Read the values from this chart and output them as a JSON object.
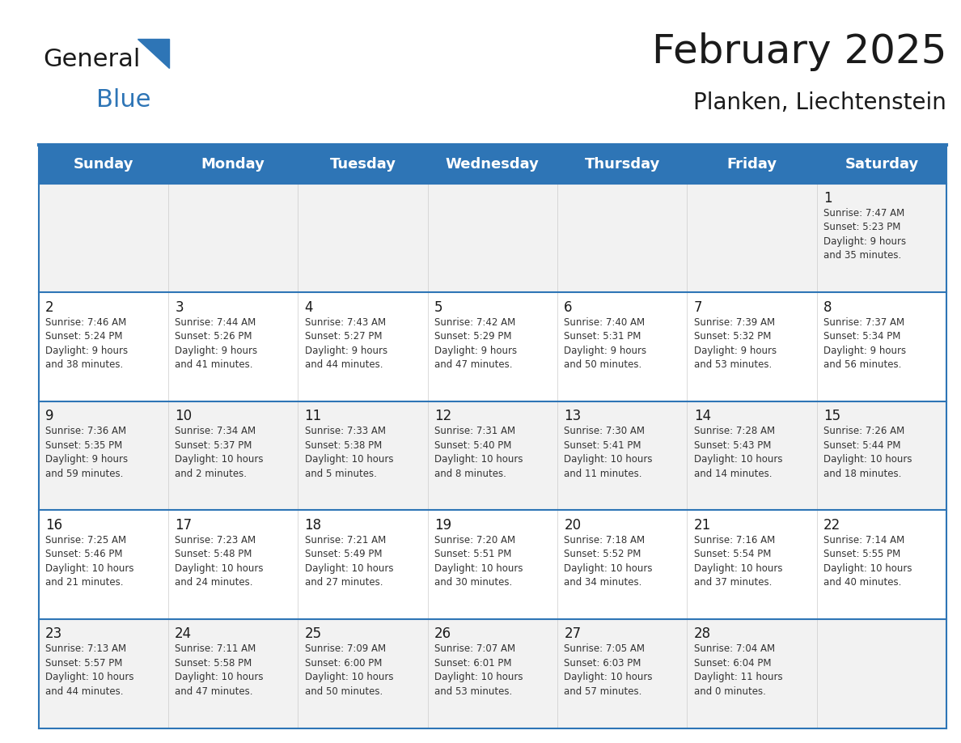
{
  "title": "February 2025",
  "subtitle": "Planken, Liechtenstein",
  "days_of_week": [
    "Sunday",
    "Monday",
    "Tuesday",
    "Wednesday",
    "Thursday",
    "Friday",
    "Saturday"
  ],
  "header_bg": "#2e75b6",
  "header_text": "#ffffff",
  "row_bg_odd": "#f2f2f2",
  "row_bg_even": "#ffffff",
  "border_color": "#2e75b6",
  "text_color": "#333333",
  "day_num_color": "#1a1a1a",
  "calendar_data": [
    [
      null,
      null,
      null,
      null,
      null,
      null,
      {
        "day": 1,
        "sunrise": "7:47 AM",
        "sunset": "5:23 PM",
        "daylight": "9 hours and 35 minutes."
      }
    ],
    [
      {
        "day": 2,
        "sunrise": "7:46 AM",
        "sunset": "5:24 PM",
        "daylight": "9 hours and 38 minutes."
      },
      {
        "day": 3,
        "sunrise": "7:44 AM",
        "sunset": "5:26 PM",
        "daylight": "9 hours and 41 minutes."
      },
      {
        "day": 4,
        "sunrise": "7:43 AM",
        "sunset": "5:27 PM",
        "daylight": "9 hours and 44 minutes."
      },
      {
        "day": 5,
        "sunrise": "7:42 AM",
        "sunset": "5:29 PM",
        "daylight": "9 hours and 47 minutes."
      },
      {
        "day": 6,
        "sunrise": "7:40 AM",
        "sunset": "5:31 PM",
        "daylight": "9 hours and 50 minutes."
      },
      {
        "day": 7,
        "sunrise": "7:39 AM",
        "sunset": "5:32 PM",
        "daylight": "9 hours and 53 minutes."
      },
      {
        "day": 8,
        "sunrise": "7:37 AM",
        "sunset": "5:34 PM",
        "daylight": "9 hours and 56 minutes."
      }
    ],
    [
      {
        "day": 9,
        "sunrise": "7:36 AM",
        "sunset": "5:35 PM",
        "daylight": "9 hours and 59 minutes."
      },
      {
        "day": 10,
        "sunrise": "7:34 AM",
        "sunset": "5:37 PM",
        "daylight": "10 hours and 2 minutes."
      },
      {
        "day": 11,
        "sunrise": "7:33 AM",
        "sunset": "5:38 PM",
        "daylight": "10 hours and 5 minutes."
      },
      {
        "day": 12,
        "sunrise": "7:31 AM",
        "sunset": "5:40 PM",
        "daylight": "10 hours and 8 minutes."
      },
      {
        "day": 13,
        "sunrise": "7:30 AM",
        "sunset": "5:41 PM",
        "daylight": "10 hours and 11 minutes."
      },
      {
        "day": 14,
        "sunrise": "7:28 AM",
        "sunset": "5:43 PM",
        "daylight": "10 hours and 14 minutes."
      },
      {
        "day": 15,
        "sunrise": "7:26 AM",
        "sunset": "5:44 PM",
        "daylight": "10 hours and 18 minutes."
      }
    ],
    [
      {
        "day": 16,
        "sunrise": "7:25 AM",
        "sunset": "5:46 PM",
        "daylight": "10 hours and 21 minutes."
      },
      {
        "day": 17,
        "sunrise": "7:23 AM",
        "sunset": "5:48 PM",
        "daylight": "10 hours and 24 minutes."
      },
      {
        "day": 18,
        "sunrise": "7:21 AM",
        "sunset": "5:49 PM",
        "daylight": "10 hours and 27 minutes."
      },
      {
        "day": 19,
        "sunrise": "7:20 AM",
        "sunset": "5:51 PM",
        "daylight": "10 hours and 30 minutes."
      },
      {
        "day": 20,
        "sunrise": "7:18 AM",
        "sunset": "5:52 PM",
        "daylight": "10 hours and 34 minutes."
      },
      {
        "day": 21,
        "sunrise": "7:16 AM",
        "sunset": "5:54 PM",
        "daylight": "10 hours and 37 minutes."
      },
      {
        "day": 22,
        "sunrise": "7:14 AM",
        "sunset": "5:55 PM",
        "daylight": "10 hours and 40 minutes."
      }
    ],
    [
      {
        "day": 23,
        "sunrise": "7:13 AM",
        "sunset": "5:57 PM",
        "daylight": "10 hours and 44 minutes."
      },
      {
        "day": 24,
        "sunrise": "7:11 AM",
        "sunset": "5:58 PM",
        "daylight": "10 hours and 47 minutes."
      },
      {
        "day": 25,
        "sunrise": "7:09 AM",
        "sunset": "6:00 PM",
        "daylight": "10 hours and 50 minutes."
      },
      {
        "day": 26,
        "sunrise": "7:07 AM",
        "sunset": "6:01 PM",
        "daylight": "10 hours and 53 minutes."
      },
      {
        "day": 27,
        "sunrise": "7:05 AM",
        "sunset": "6:03 PM",
        "daylight": "10 hours and 57 minutes."
      },
      {
        "day": 28,
        "sunrise": "7:04 AM",
        "sunset": "6:04 PM",
        "daylight": "11 hours and 0 minutes."
      },
      null
    ]
  ],
  "logo_text_general": "General",
  "logo_text_blue": "Blue",
  "logo_color_general": "#1a1a1a",
  "logo_color_blue": "#2e75b6",
  "logo_triangle_color": "#2e75b6",
  "title_fontsize": 36,
  "subtitle_fontsize": 20,
  "header_fontsize": 13,
  "day_num_fontsize": 12,
  "cell_text_fontsize": 8.5
}
